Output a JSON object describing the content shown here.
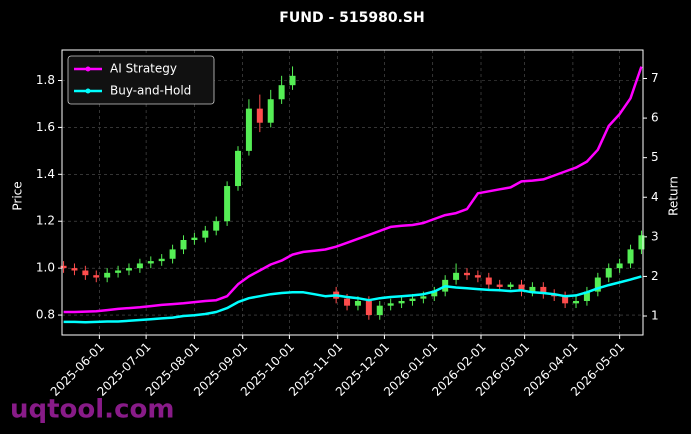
{
  "chart_data": {
    "type": "candlestick-with-returns",
    "title": "FUND - 515980.SH",
    "y_label": "Price",
    "y2_label": "Return",
    "watermark": "uqtool.com",
    "x": [
      "2025-05-09",
      "2025-05-16",
      "2025-05-23",
      "2025-05-30",
      "2025-06-06",
      "2025-06-13",
      "2025-06-20",
      "2025-06-27",
      "2025-07-04",
      "2025-07-11",
      "2025-07-18",
      "2025-07-25",
      "2025-08-01",
      "2025-08-08",
      "2025-08-15",
      "2025-08-22",
      "2025-08-29",
      "2025-09-05",
      "2025-09-12",
      "2025-09-19",
      "2025-09-26",
      "2025-10-03",
      "2025-10-10",
      "2025-10-17",
      "2025-10-24",
      "2025-10-31",
      "2025-11-07",
      "2025-11-14",
      "2025-11-21",
      "2025-11-28",
      "2025-12-05",
      "2025-12-12",
      "2025-12-19",
      "2025-12-26",
      "2026-01-02",
      "2026-01-09",
      "2026-01-16",
      "2026-01-23",
      "2026-01-30",
      "2026-02-06",
      "2026-02-13",
      "2026-02-20",
      "2026-02-27",
      "2026-03-06",
      "2026-03-13",
      "2026-03-20",
      "2026-03-27",
      "2026-04-03",
      "2026-04-10",
      "2026-04-17",
      "2026-04-24",
      "2026-05-01",
      "2026-05-08",
      "2026-05-15"
    ],
    "candles": {
      "up_color": "#55ee55",
      "down_color": "#ff4d4d",
      "open": [
        1.01,
        1.0,
        0.99,
        0.97,
        0.96,
        0.98,
        0.99,
        1.0,
        1.02,
        1.03,
        1.04,
        1.08,
        1.12,
        1.13,
        1.16,
        1.2,
        1.35,
        1.5,
        1.68,
        1.62,
        1.72,
        1.78,
        null,
        null,
        null,
        0.9,
        0.87,
        0.84,
        0.86,
        0.8,
        0.84,
        0.85,
        0.86,
        0.87,
        0.88,
        0.9,
        0.95,
        0.98,
        0.97,
        0.96,
        0.93,
        0.92,
        0.93,
        0.9,
        0.92,
        0.89,
        0.88,
        0.85,
        0.86,
        0.9,
        0.96,
        1.0,
        1.02,
        1.08
      ],
      "high": [
        1.03,
        1.02,
        1.01,
        0.99,
        1.0,
        1.01,
        1.02,
        1.04,
        1.05,
        1.06,
        1.1,
        1.14,
        1.15,
        1.18,
        1.22,
        1.37,
        1.52,
        1.72,
        1.74,
        1.76,
        1.82,
        1.86,
        null,
        null,
        null,
        0.92,
        0.89,
        0.88,
        0.88,
        0.86,
        0.87,
        0.88,
        0.89,
        0.9,
        0.92,
        0.97,
        1.02,
        1.0,
        0.99,
        0.98,
        0.95,
        0.94,
        0.95,
        0.94,
        0.94,
        0.91,
        0.9,
        0.88,
        0.92,
        0.98,
        1.02,
        1.04,
        1.1,
        1.16
      ],
      "low": [
        0.98,
        0.97,
        0.95,
        0.94,
        0.94,
        0.96,
        0.97,
        0.98,
        1.0,
        1.01,
        1.02,
        1.06,
        1.1,
        1.11,
        1.14,
        1.18,
        1.33,
        1.48,
        1.58,
        1.6,
        1.7,
        1.76,
        null,
        null,
        null,
        0.85,
        0.82,
        0.82,
        0.78,
        0.78,
        0.82,
        0.83,
        0.84,
        0.85,
        0.86,
        0.88,
        0.93,
        0.95,
        0.94,
        0.91,
        0.9,
        0.91,
        0.88,
        0.88,
        0.87,
        0.86,
        0.83,
        0.83,
        0.84,
        0.88,
        0.94,
        0.98,
        1.0,
        1.06
      ],
      "close": [
        1.0,
        0.99,
        0.97,
        0.96,
        0.98,
        0.99,
        1.0,
        1.02,
        1.03,
        1.04,
        1.08,
        1.12,
        1.13,
        1.16,
        1.2,
        1.35,
        1.5,
        1.68,
        1.62,
        1.72,
        1.78,
        1.82,
        null,
        null,
        null,
        0.87,
        0.84,
        0.86,
        0.8,
        0.84,
        0.85,
        0.86,
        0.87,
        0.88,
        0.9,
        0.95,
        0.98,
        0.97,
        0.96,
        0.93,
        0.92,
        0.93,
        0.9,
        0.92,
        0.89,
        0.88,
        0.85,
        0.86,
        0.9,
        0.96,
        1.0,
        1.02,
        1.08,
        1.14
      ]
    },
    "series": [
      {
        "name": "AI Strategy",
        "color": "#ff00ff",
        "axis": "y2",
        "values": [
          1.1,
          1.1,
          1.11,
          1.12,
          1.15,
          1.18,
          1.2,
          1.22,
          1.25,
          1.28,
          1.3,
          1.32,
          1.35,
          1.38,
          1.4,
          1.5,
          1.8,
          2.0,
          2.15,
          2.3,
          2.4,
          2.55,
          2.62,
          2.65,
          2.68,
          2.75,
          2.85,
          2.95,
          3.05,
          3.15,
          3.25,
          3.28,
          3.3,
          3.35,
          3.45,
          3.55,
          3.6,
          3.7,
          4.1,
          4.15,
          4.2,
          4.25,
          4.4,
          4.42,
          4.45,
          4.55,
          4.65,
          4.75,
          4.9,
          5.2,
          5.8,
          6.1,
          6.5,
          7.3
        ]
      },
      {
        "name": "Buy-and-Hold",
        "color": "#00ffff",
        "axis": "y2",
        "values": [
          0.85,
          0.85,
          0.84,
          0.85,
          0.86,
          0.86,
          0.88,
          0.9,
          0.92,
          0.94,
          0.96,
          1.0,
          1.02,
          1.05,
          1.1,
          1.2,
          1.35,
          1.45,
          1.5,
          1.55,
          1.58,
          1.6,
          1.6,
          1.55,
          1.5,
          1.52,
          1.48,
          1.45,
          1.4,
          1.45,
          1.48,
          1.5,
          1.52,
          1.55,
          1.62,
          1.75,
          1.72,
          1.7,
          1.68,
          1.66,
          1.65,
          1.63,
          1.65,
          1.6,
          1.58,
          1.55,
          1.5,
          1.52,
          1.6,
          1.7,
          1.78,
          1.85,
          1.92,
          2.0
        ]
      }
    ],
    "xlim": [
      "2025-05-08",
      "2026-05-16"
    ],
    "xticks": [
      "2025-06-01",
      "2025-07-01",
      "2025-08-01",
      "2025-09-01",
      "2025-10-01",
      "2025-11-01",
      "2025-12-01",
      "2026-01-01",
      "2026-02-01",
      "2026-03-01",
      "2026-04-01",
      "2026-05-01"
    ],
    "ylim": [
      0.715,
      1.93
    ],
    "yticks": [
      0.8,
      {
        "value": 1,
        "label": "1.0"
      },
      1.2,
      1.4,
      1.6,
      1.8
    ],
    "y2lim": [
      0.52,
      7.72
    ],
    "y2ticks": [
      1,
      2,
      3,
      4,
      5,
      6,
      7
    ],
    "grid": true,
    "legend": "upper left"
  }
}
